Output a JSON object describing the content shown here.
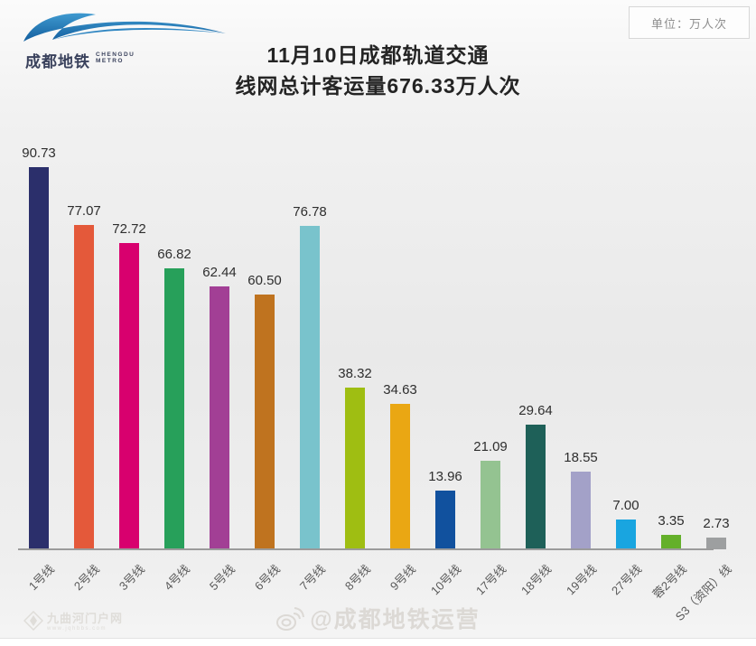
{
  "header": {
    "logo_cn": "成都地铁",
    "logo_en_line1": "CHENGDU",
    "logo_en_line2": "METRO",
    "unit_label": "单位：万人次"
  },
  "title": {
    "line1": "11月10日成都轨道交通",
    "line2": "线网总计客运量676.33万人次"
  },
  "chart_data": {
    "type": "bar",
    "title": "11月10日成都轨道交通线网总计客运量676.33万人次",
    "unit": "万人次",
    "categories": [
      "1号线",
      "2号线",
      "3号线",
      "4号线",
      "5号线",
      "6号线",
      "7号线",
      "8号线",
      "9号线",
      "10号线",
      "17号线",
      "18号线",
      "19号线",
      "27号线",
      "蓉2号线",
      "S3（资阳）线"
    ],
    "values": [
      90.73,
      77.07,
      72.72,
      66.82,
      62.44,
      60.5,
      76.78,
      38.32,
      34.63,
      13.96,
      21.09,
      29.64,
      18.55,
      7.0,
      3.35,
      2.73
    ],
    "value_labels": [
      "90.73",
      "77.07",
      "72.72",
      "66.82",
      "62.44",
      "60.50",
      "76.78",
      "38.32",
      "34.63",
      "13.96",
      "21.09",
      "29.64",
      "18.55",
      "7.00",
      "3.35",
      "2.73"
    ],
    "colors": [
      "#2b2f6b",
      "#e4593a",
      "#d8006e",
      "#27a05a",
      "#a23f95",
      "#bf731f",
      "#79c3cc",
      "#9fbe12",
      "#eaa713",
      "#11519e",
      "#94c391",
      "#1e6058",
      "#a3a1c8",
      "#19a5e0",
      "#64b02a",
      "#9d9fa0"
    ],
    "ylim": [
      0,
      97
    ],
    "grid": false,
    "legend": false,
    "xlabel": "",
    "ylabel": ""
  },
  "watermarks": {
    "center": "@成都地铁运营",
    "left_main": "九曲河门户网",
    "left_sub": "www.jqhbbs.com"
  }
}
